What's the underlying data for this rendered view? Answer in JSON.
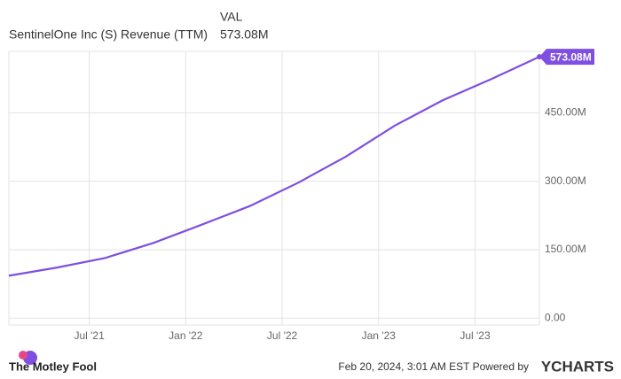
{
  "chart_data": {
    "type": "line",
    "legend": {
      "header": "VAL",
      "name": "SentinelOne Inc (S) Revenue (TTM)",
      "value": "573.08M"
    },
    "x": [
      "2021-01",
      "2021-04",
      "2021-07",
      "2021-10",
      "2022-01",
      "2022-04",
      "2022-07",
      "2022-10",
      "2023-01",
      "2023-04",
      "2023-07",
      "2023-10"
    ],
    "series": [
      {
        "name": "SentinelOne Inc (S) Revenue (TTM)",
        "color": "#7e4fe0",
        "values": [
          93,
          111,
          132,
          165,
          205,
          246,
          297,
          355,
          422,
          478,
          524,
          573.08
        ]
      }
    ],
    "xlim": [
      "2021-01",
      "2023-10"
    ],
    "xticks": [
      {
        "value": "2021-07",
        "label": "Jul '21"
      },
      {
        "value": "2022-01",
        "label": "Jan '22"
      },
      {
        "value": "2022-07",
        "label": "Jul '22"
      },
      {
        "value": "2023-01",
        "label": "Jan '23"
      },
      {
        "value": "2023-07",
        "label": "Jul '23"
      }
    ],
    "ylim": [
      -15,
      585
    ],
    "yticks": [
      {
        "value": 0,
        "label": "0.00"
      },
      {
        "value": 150,
        "label": "150.00M"
      },
      {
        "value": 300,
        "label": "300.00M"
      },
      {
        "value": 450,
        "label": "450.00M"
      }
    ],
    "grid": true,
    "footer": {
      "brand": "The Motley Fool",
      "timestamp": "Feb 20, 2024, 3:01 AM EST Powered by",
      "source": "YCHARTS"
    }
  }
}
